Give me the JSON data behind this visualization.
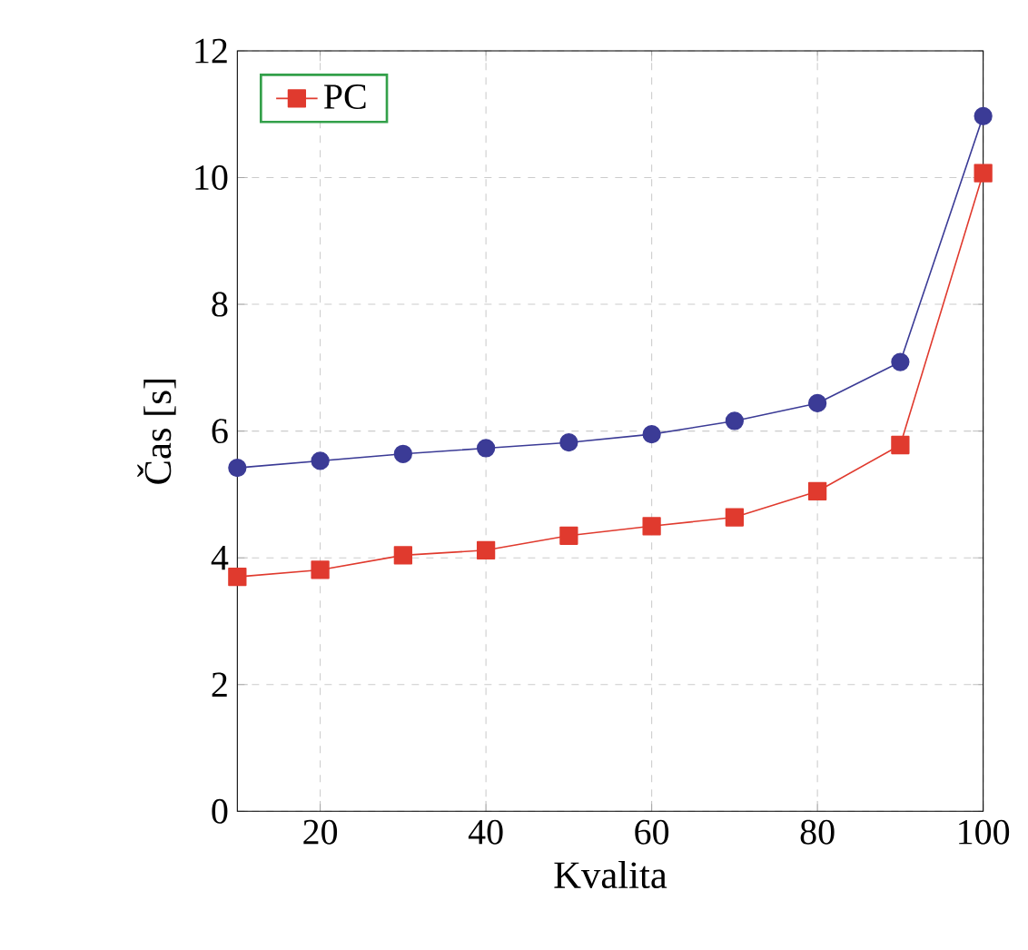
{
  "chart_data": {
    "type": "line",
    "xlabel": "Kvalita",
    "ylabel": "Čas [s]",
    "x": [
      10,
      20,
      30,
      40,
      50,
      60,
      70,
      80,
      90,
      100
    ],
    "series": [
      {
        "color": "#3b3b96",
        "marker": "circle",
        "values": [
          5.42,
          5.53,
          5.64,
          5.73,
          5.82,
          5.95,
          6.16,
          6.44,
          7.09,
          10.97
        ]
      },
      {
        "name": "PC",
        "color": "#e03a2e",
        "marker": "square",
        "values": [
          3.7,
          3.81,
          4.04,
          4.12,
          4.35,
          4.5,
          4.64,
          5.05,
          5.78,
          10.07
        ]
      }
    ],
    "xlim": [
      10,
      100
    ],
    "ylim": [
      0,
      12
    ],
    "xticks": [
      20,
      40,
      60,
      80,
      100
    ],
    "yticks": [
      0,
      2,
      4,
      6,
      8,
      10,
      12
    ],
    "grid": true,
    "legend": "top left",
    "line_style": "solid"
  }
}
